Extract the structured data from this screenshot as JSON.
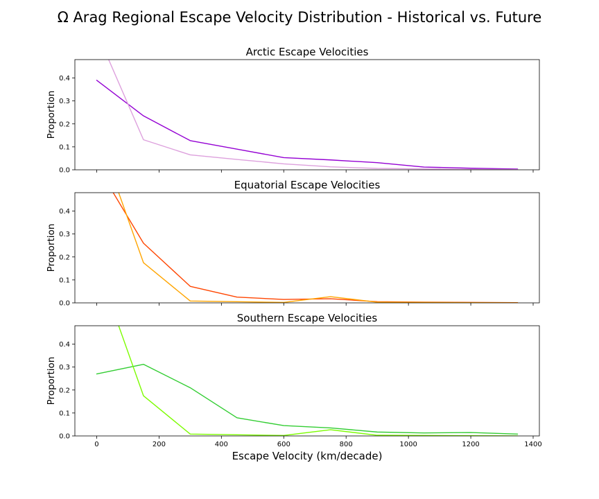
{
  "chart_data": {
    "type": "line",
    "title": "Ω Arag Regional Escape Velocity Distribution - Historical vs. Future",
    "xlabel": "Escape Velocity (km/decade)",
    "xlim": [
      -70,
      1420
    ],
    "x_ticks": [
      0,
      200,
      400,
      600,
      800,
      1000,
      1200,
      1400
    ],
    "ylim": [
      0,
      0.48
    ],
    "y_ticks": [
      0.0,
      0.1,
      0.2,
      0.3,
      0.4
    ],
    "grid": false,
    "x": [
      0,
      150,
      300,
      450,
      600,
      750,
      900,
      1050,
      1200,
      1350
    ],
    "panels": [
      {
        "title": "Arctic Escape Velocities",
        "ylabel": "Proportion",
        "series": [
          {
            "color": "#9400D3",
            "values": [
              0.39,
              0.235,
              0.127,
              0.09,
              0.053,
              0.043,
              0.031,
              0.012,
              0.007,
              0.003
            ]
          },
          {
            "color": "#DDA0DD",
            "values": [
              0.6,
              0.131,
              0.065,
              0.045,
              0.026,
              0.013,
              0.006,
              0.004,
              0.002,
              0.001
            ]
          }
        ]
      },
      {
        "title": "Equatorial Escape Velocities",
        "ylabel": "Proportion",
        "series": [
          {
            "color": "#FF4500",
            "values": [
              0.6,
              0.26,
              0.072,
              0.025,
              0.015,
              0.018,
              0.005,
              0.003,
              0.002,
              0.001
            ]
          },
          {
            "color": "#FFA500",
            "values": [
              0.75,
              0.175,
              0.008,
              0.005,
              0.002,
              0.027,
              0.003,
              0.002,
              0.001,
              0.0
            ]
          }
        ]
      },
      {
        "title": "Southern Escape Velocities",
        "ylabel": "Proportion",
        "series": [
          {
            "color": "#32CD32",
            "values": [
              0.27,
              0.312,
              0.21,
              0.079,
              0.045,
              0.035,
              0.017,
              0.013,
              0.015,
              0.008
            ]
          },
          {
            "color": "#7CFC00",
            "values": [
              0.75,
              0.175,
              0.008,
              0.005,
              0.002,
              0.027,
              0.003,
              0.002,
              0.001,
              0.0
            ]
          }
        ]
      }
    ]
  }
}
